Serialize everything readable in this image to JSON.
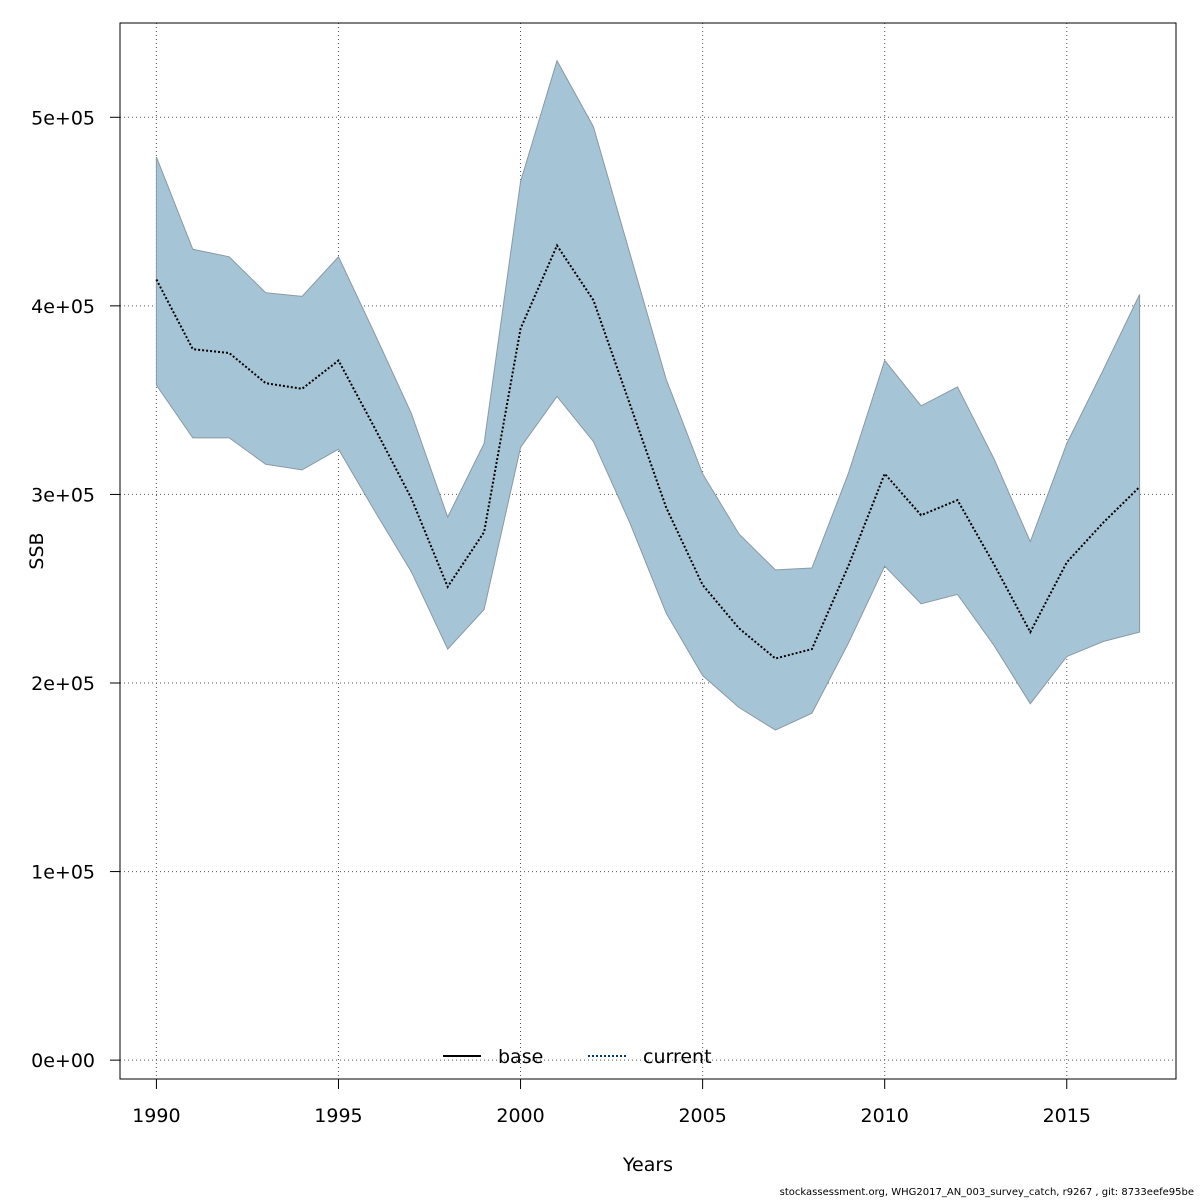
{
  "chart_data": {
    "type": "area",
    "xlabel": "Years",
    "ylabel": "SSB",
    "xlim": [
      1989,
      2018
    ],
    "ylim": [
      -10000,
      550000
    ],
    "x_ticks": [
      1990,
      1995,
      2000,
      2005,
      2010,
      2015
    ],
    "y_ticks": [
      0,
      100000,
      200000,
      300000,
      400000,
      500000
    ],
    "y_tick_labels": [
      "0e+00",
      "1e+05",
      "2e+05",
      "3e+05",
      "4e+05",
      "5e+05"
    ],
    "grid": true,
    "legend": {
      "position": "bottom-center",
      "entries": [
        {
          "label": "base",
          "style": "solid",
          "color": "#000000"
        },
        {
          "label": "current",
          "style": "dotted",
          "color": "#003a6b"
        }
      ]
    },
    "band_color": "#a5c4d6",
    "band_edge_color": "#8a9aa3",
    "x": [
      1990,
      1991,
      1992,
      1993,
      1994,
      1995,
      1996,
      1997,
      1998,
      1999,
      2000,
      2001,
      2002,
      2003,
      2004,
      2005,
      2006,
      2007,
      2008,
      2009,
      2010,
      2011,
      2012,
      2013,
      2014,
      2015,
      2016,
      2017
    ],
    "series": [
      {
        "name": "current",
        "values": [
          414000,
          377000,
          375000,
          359000,
          356000,
          371000,
          335000,
          298000,
          251000,
          280000,
          388000,
          432000,
          403000,
          348000,
          293000,
          252000,
          229000,
          213000,
          218000,
          262000,
          311000,
          289000,
          297000,
          263000,
          227000,
          264000,
          285000,
          304000
        ],
        "lower": [
          358000,
          330000,
          330000,
          316000,
          313000,
          324000,
          291000,
          259000,
          218000,
          239000,
          325000,
          352000,
          328000,
          285000,
          237000,
          204000,
          187000,
          175000,
          184000,
          221000,
          262000,
          242000,
          247000,
          220000,
          189000,
          214000,
          222000,
          227000
        ],
        "upper": [
          479000,
          430000,
          426000,
          407000,
          405000,
          426000,
          385000,
          343000,
          288000,
          327000,
          466000,
          530000,
          495000,
          428000,
          361000,
          311000,
          279000,
          260000,
          261000,
          311000,
          371000,
          347000,
          357000,
          319000,
          275000,
          327000,
          366000,
          406000
        ]
      }
    ],
    "footer": "stockassessment.org, WHG2017_AN_003_survey_catch, r9267 , git: 8733eefe95be"
  }
}
